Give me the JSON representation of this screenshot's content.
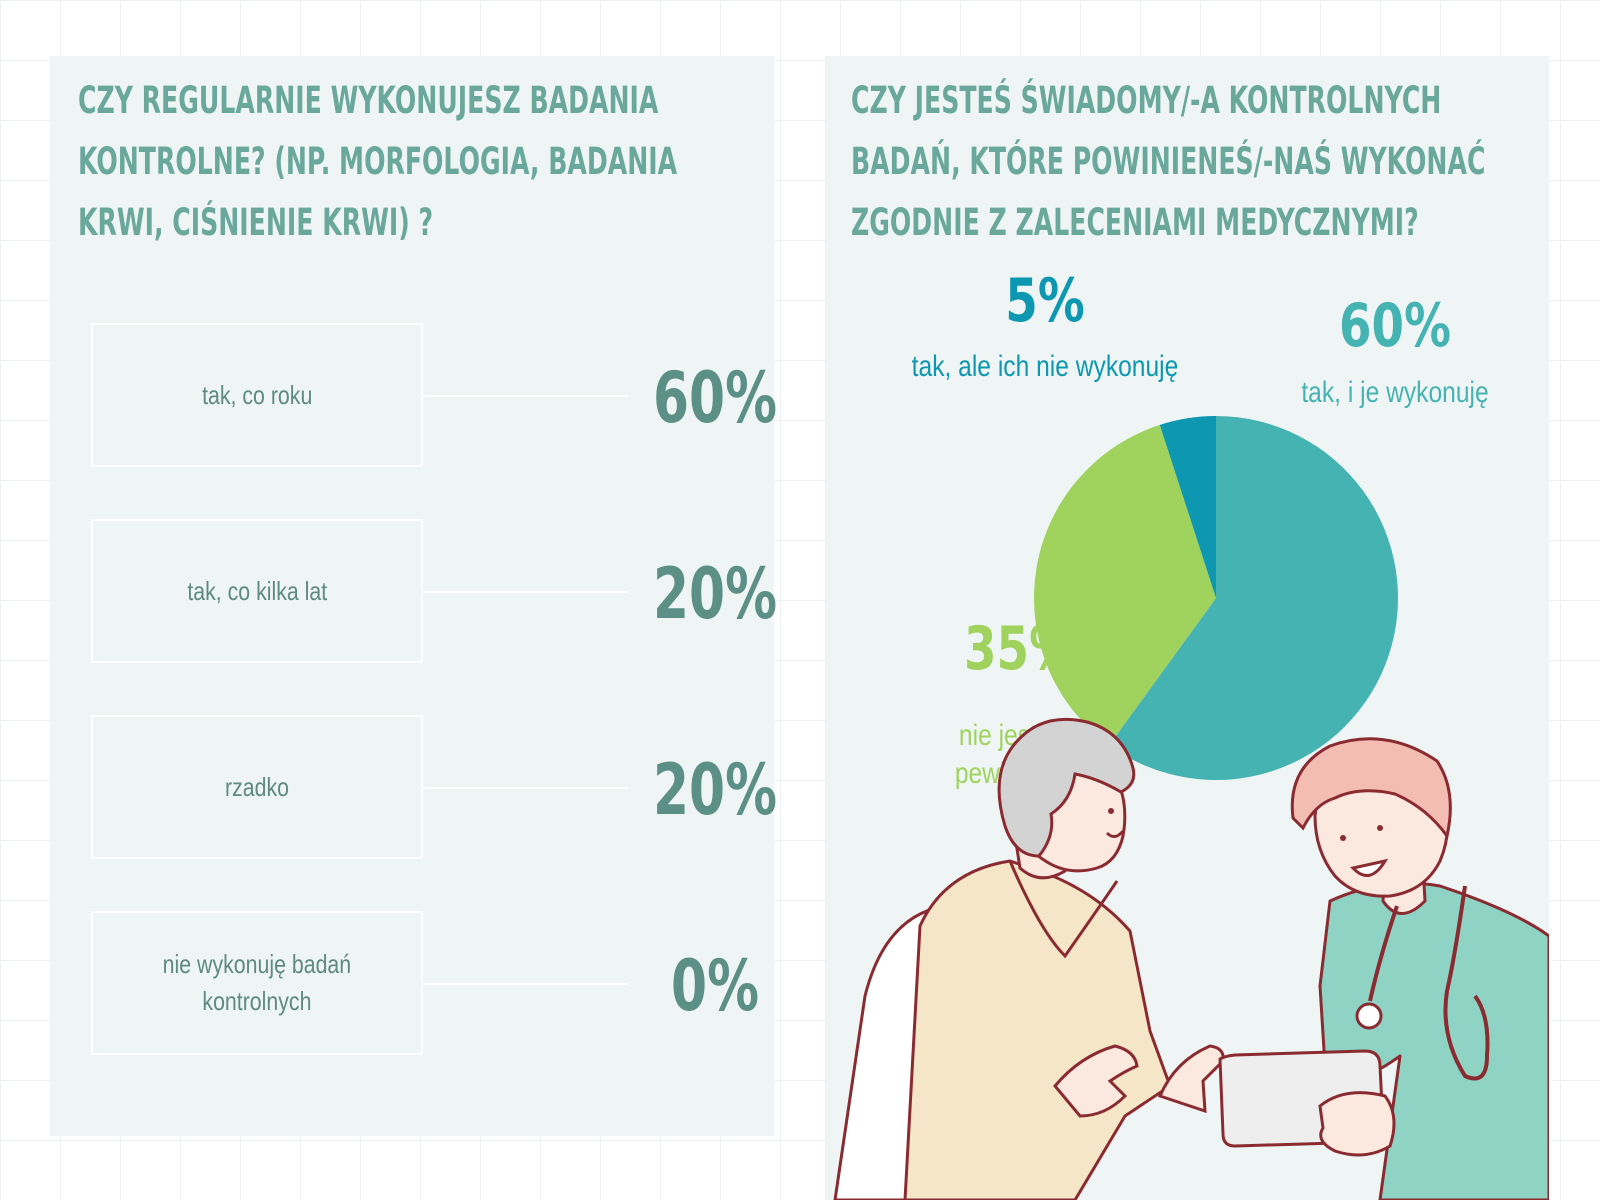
{
  "left": {
    "heading_lines": [
      "CZY REGULARNIE WYKONUJESZ BADANIA",
      "KONTROLNE? (NP. MORFOLOGIA, BADANIA",
      "KRWI, CIŚNIENIE KRWI) ?"
    ]
  },
  "right": {
    "heading_lines": [
      "CZY JESTEŚ ŚWIADOMY/-A KONTROLNYCH",
      "BADAŃ, KTÓRE POWINIENEŚ/-NAŚ WYKONAĆ",
      "ZGODNIE Z ZALECENIAMI MEDYCZNYMI?"
    ]
  },
  "chart_data": [
    {
      "type": "table",
      "title": "CZY REGULARNIE WYKONUJESZ BADANIA KONTROLNE? (NP. MORFOLOGIA, BADANIA KRWI, CIŚNIENIE KRWI) ?",
      "rows": [
        {
          "label_lines": [
            "tak, co roku"
          ],
          "value": 60,
          "value_label": "60%"
        },
        {
          "label_lines": [
            "tak, co kilka lat"
          ],
          "value": 20,
          "value_label": "20%"
        },
        {
          "label_lines": [
            "rzadko"
          ],
          "value": 20,
          "value_label": "20%"
        },
        {
          "label_lines": [
            "nie wykonuję badań",
            "kontrolnych"
          ],
          "value": 0,
          "value_label": "0%"
        }
      ]
    },
    {
      "type": "pie",
      "title": "CZY JESTEŚ ŚWIADOMY/-A KONTROLNYCH BADAŃ, KTÓRE POWINIENEŚ/-NAŚ WYKONAĆ ZGODNIE Z ZALECENIAMI MEDYCZNYMI?",
      "slices": [
        {
          "label_lines": [
            "tak, i je wykonuję"
          ],
          "value": 60,
          "value_label": "60%",
          "color": "#45b3b2"
        },
        {
          "label_lines": [
            "nie jestem",
            "pewien/-na"
          ],
          "value": 35,
          "value_label": "35%",
          "color": "#a0d35e"
        },
        {
          "label_lines": [
            "tak, ale ich nie wykonuję"
          ],
          "value": 5,
          "value_label": "5%",
          "color": "#0d97b0"
        }
      ]
    }
  ],
  "colors": {
    "panel_bg": "#eef5f4",
    "heading": "#6aa89b",
    "row_text": "#5f8a82",
    "row_value": "#5c8f85"
  }
}
